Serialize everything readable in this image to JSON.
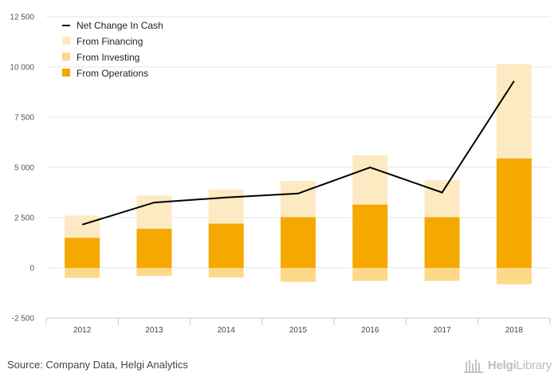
{
  "chart_data": {
    "type": "bar",
    "stacked": true,
    "categories": [
      "2012",
      "2013",
      "2014",
      "2015",
      "2016",
      "2017",
      "2018"
    ],
    "series": [
      {
        "name": "From Operations",
        "kind": "bar",
        "color": "#f5a800",
        "values": [
          1500,
          1950,
          2200,
          2520,
          3150,
          2520,
          5450
        ]
      },
      {
        "name": "From Investing",
        "kind": "bar",
        "color": "#fdd98a",
        "values": [
          -500,
          -400,
          -480,
          -700,
          -650,
          -650,
          -820
        ]
      },
      {
        "name": "From Financing",
        "kind": "bar",
        "color": "#fde9c2",
        "values": [
          1100,
          1650,
          1700,
          1800,
          2450,
          1850,
          4700
        ]
      },
      {
        "name": "Net Change In Cash",
        "kind": "line",
        "color": "#000000",
        "values": [
          2150,
          3250,
          3500,
          3700,
          5000,
          3750,
          9300
        ]
      }
    ],
    "ylim": [
      -2500,
      12500
    ],
    "yticks": [
      -2500,
      0,
      2500,
      5000,
      7500,
      10000,
      12500
    ],
    "ytick_labels": [
      "-2 500",
      "0",
      "2 500",
      "5 000",
      "7 500",
      "10 000",
      "12 500"
    ],
    "legend_order": [
      "Net Change In Cash",
      "From Financing",
      "From Investing",
      "From Operations"
    ],
    "legend_position": "top-left",
    "grid": true,
    "title": "",
    "xlabel": "",
    "ylabel": ""
  },
  "footer": {
    "source": "Source: Company Data, Helgi Analytics",
    "brand_bold": "Helgi",
    "brand_rest": "Library"
  }
}
